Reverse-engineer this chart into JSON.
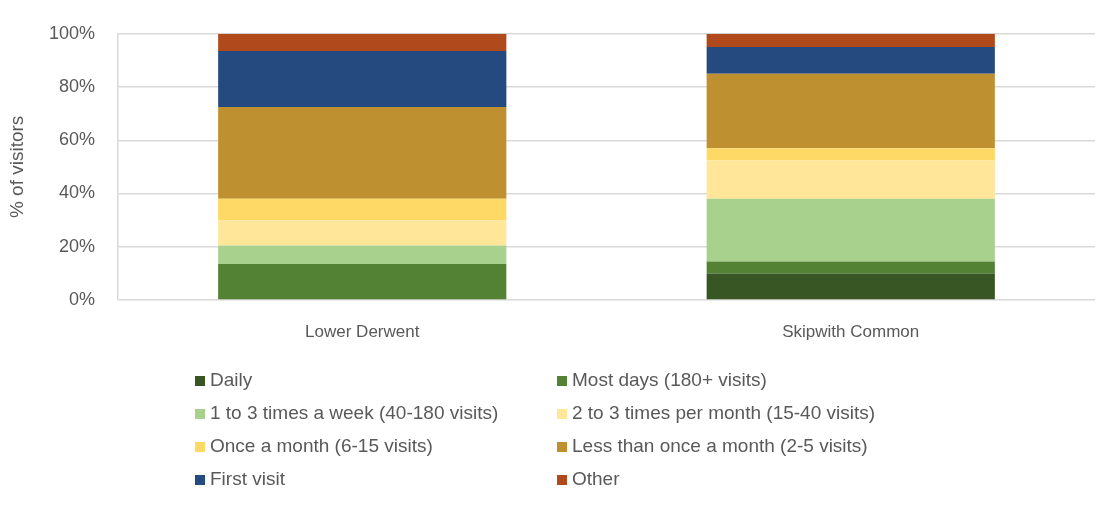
{
  "chart_data": {
    "type": "bar",
    "stacked": true,
    "ylabel": "% of visitors",
    "categories": [
      "Lower Derwent",
      "Skipwith Common"
    ],
    "series": [
      {
        "name": "Daily",
        "color": "#375623",
        "values": [
          0,
          10
        ]
      },
      {
        "name": "Most days (180+ visits)",
        "color": "#548235",
        "values": [
          13.5,
          4.5
        ]
      },
      {
        "name": "1 to 3 times a week (40-180 visits)",
        "color": "#a9d18e",
        "values": [
          7,
          23.5
        ]
      },
      {
        "name": "2 to 3 times per month (15-40 visits)",
        "color": "#ffe699",
        "values": [
          9.5,
          14.5
        ]
      },
      {
        "name": "Once a month (6-15 visits)",
        "color": "#ffd966",
        "values": [
          8,
          4.5
        ]
      },
      {
        "name": "Less than once a month (2-5 visits)",
        "color": "#bf9030",
        "values": [
          34.5,
          28
        ]
      },
      {
        "name": "First visit",
        "color": "#254a80",
        "values": [
          21,
          10
        ]
      },
      {
        "name": "Other",
        "color": "#b04a1c",
        "values": [
          6.5,
          5
        ]
      }
    ],
    "ylim": [
      0,
      100
    ],
    "yticks": [
      {
        "value": 0,
        "label": "0%"
      },
      {
        "value": 20,
        "label": "20%"
      },
      {
        "value": 40,
        "label": "40%"
      },
      {
        "value": 60,
        "label": "60%"
      },
      {
        "value": 80,
        "label": "80%"
      },
      {
        "value": 100,
        "label": "100%"
      }
    ],
    "grid": "y",
    "legend": "bottom"
  }
}
